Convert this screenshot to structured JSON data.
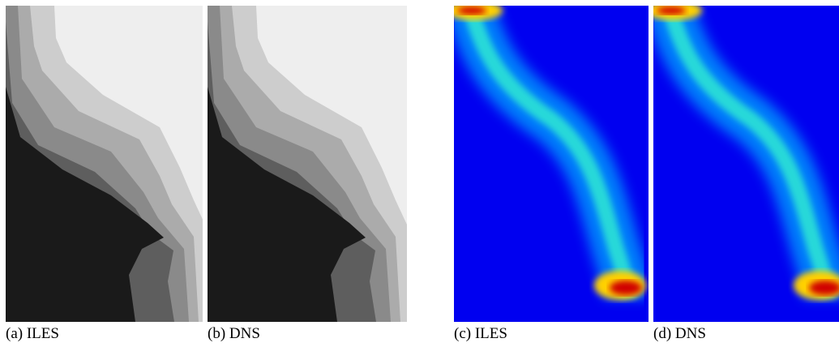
{
  "panels": [
    {
      "caption": "(a) ILES"
    },
    {
      "caption": "(b) DNS"
    },
    {
      "caption": "(c) ILES"
    },
    {
      "caption": "(d) DNS"
    }
  ]
}
